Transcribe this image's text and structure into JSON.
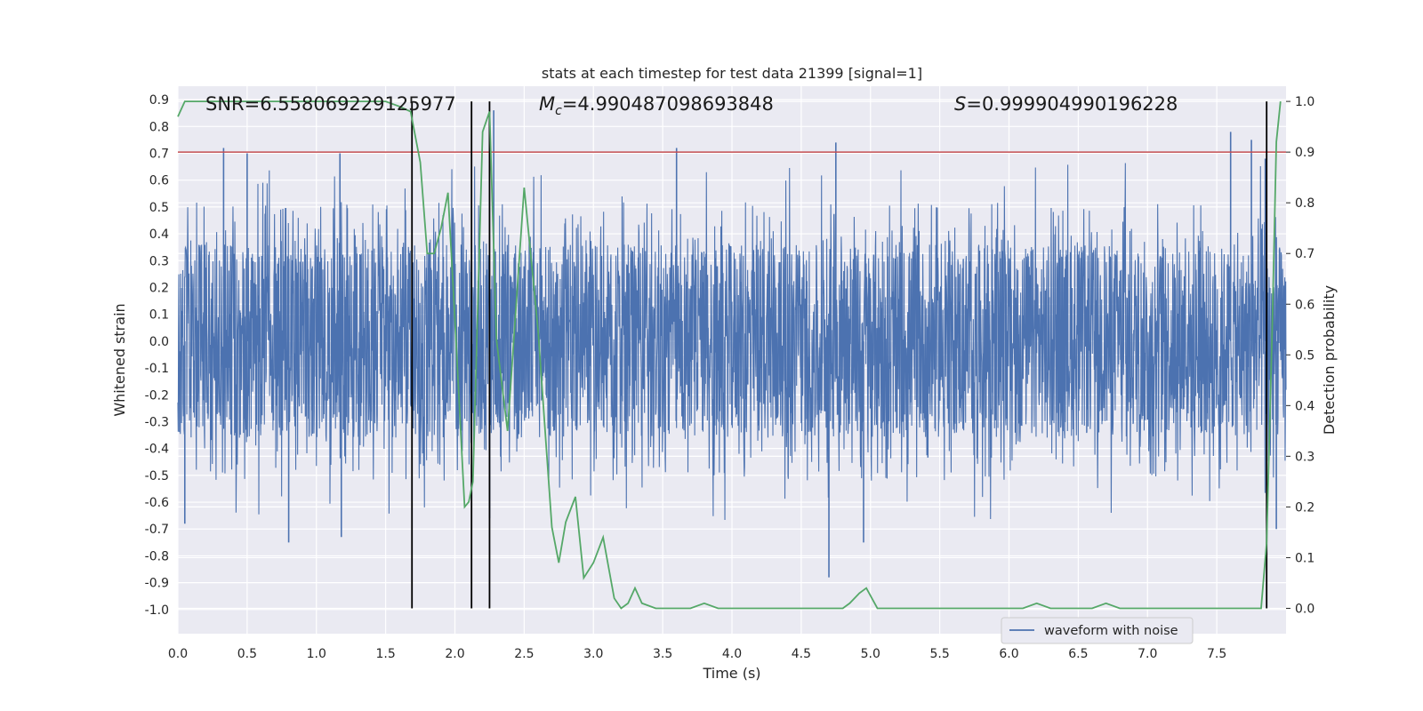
{
  "chart_data": {
    "type": "line",
    "title": "stats at each timestep for test data 21399 [signal=1]",
    "xlabel": "Time (s)",
    "ylabel_left": "Whitened strain",
    "ylabel_right": "Detection probability",
    "xlim": [
      0.0,
      8.0
    ],
    "ylim_left": [
      -1.09,
      0.95
    ],
    "ylim_right": [
      -0.05,
      1.03
    ],
    "x_ticks": [
      "0.0",
      "0.5",
      "1.0",
      "1.5",
      "2.0",
      "2.5",
      "3.0",
      "3.5",
      "4.0",
      "4.5",
      "5.0",
      "5.5",
      "6.0",
      "6.5",
      "7.0",
      "7.5"
    ],
    "y_left_ticks": [
      "-1.0",
      "-0.9",
      "-0.8",
      "-0.7",
      "-0.6",
      "-0.5",
      "-0.4",
      "-0.3",
      "-0.2",
      "-0.1",
      "0.0",
      "0.1",
      "0.2",
      "0.3",
      "0.4",
      "0.5",
      "0.6",
      "0.7",
      "0.8",
      "0.9"
    ],
    "y_right_ticks": [
      "0.0",
      "0.1",
      "0.2",
      "0.3",
      "0.4",
      "0.5",
      "0.6",
      "0.7",
      "0.8",
      "0.9",
      "1.0"
    ],
    "grid": true,
    "annotations": {
      "snr": "SNR=6.558069229125977",
      "mc_symbol": "M",
      "mc_sub": "c",
      "mc_value": "=4.990487098693848",
      "s_symbol": "S",
      "s_value": "=0.999904990196228"
    },
    "threshold_right": 0.9,
    "vertical_lines_x": [
      1.69,
      2.12,
      2.25,
      7.86
    ],
    "legend": {
      "position": "lower-right",
      "entries": [
        "waveform with noise"
      ]
    },
    "series": [
      {
        "name": "waveform with noise",
        "axis": "left",
        "color": "#4c72b0",
        "kind": "dense noise",
        "x_range": [
          0.0,
          8.0
        ],
        "typical_envelope": [
          -0.45,
          0.45
        ],
        "extreme_range": [
          -0.88,
          0.86
        ],
        "spikes": [
          [
            0.05,
            -0.68
          ],
          [
            0.33,
            0.72
          ],
          [
            0.5,
            0.7
          ],
          [
            0.8,
            -0.75
          ],
          [
            1.17,
            0.7
          ],
          [
            1.18,
            -0.73
          ],
          [
            2.25,
            -0.66
          ],
          [
            2.28,
            0.86
          ],
          [
            3.6,
            0.72
          ],
          [
            4.75,
            0.74
          ],
          [
            4.7,
            -0.88
          ],
          [
            4.95,
            -0.75
          ],
          [
            7.6,
            0.78
          ],
          [
            7.75,
            0.75
          ],
          [
            7.85,
            0.68
          ],
          [
            7.93,
            -0.7
          ]
        ]
      },
      {
        "name": "Detection probability",
        "axis": "right",
        "color": "#55a868",
        "x": [
          0.0,
          0.05,
          0.1,
          0.5,
          1.0,
          1.5,
          1.6,
          1.68,
          1.75,
          1.8,
          1.85,
          1.9,
          1.95,
          2.0,
          2.07,
          2.1,
          2.13,
          2.2,
          2.25,
          2.3,
          2.38,
          2.5,
          2.6,
          2.7,
          2.75,
          2.8,
          2.87,
          2.93,
          3.0,
          3.07,
          3.15,
          3.2,
          3.25,
          3.3,
          3.35,
          3.45,
          3.5,
          3.6,
          3.7,
          3.8,
          3.9,
          4.0,
          4.5,
          4.7,
          4.8,
          4.85,
          4.92,
          4.97,
          5.05,
          5.2,
          5.4,
          5.6,
          5.8,
          6.0,
          6.1,
          6.2,
          6.3,
          6.5,
          6.6,
          6.7,
          6.8,
          7.0,
          7.2,
          7.4,
          7.6,
          7.75,
          7.82,
          7.86,
          7.9,
          7.93,
          7.96
        ],
        "values": [
          0.97,
          1.0,
          1.0,
          1.0,
          1.0,
          1.0,
          0.99,
          0.98,
          0.88,
          0.7,
          0.7,
          0.75,
          0.82,
          0.57,
          0.2,
          0.21,
          0.25,
          0.94,
          0.98,
          0.53,
          0.35,
          0.83,
          0.55,
          0.16,
          0.09,
          0.17,
          0.22,
          0.06,
          0.09,
          0.14,
          0.02,
          0.0,
          0.01,
          0.04,
          0.01,
          0.0,
          0.0,
          0.0,
          0.0,
          0.01,
          0.0,
          0.0,
          0.0,
          0.0,
          0.0,
          0.01,
          0.03,
          0.04,
          0.0,
          0.0,
          0.0,
          0.0,
          0.0,
          0.0,
          0.0,
          0.01,
          0.0,
          0.0,
          0.0,
          0.01,
          0.0,
          0.0,
          0.0,
          0.0,
          0.0,
          0.0,
          0.0,
          0.13,
          0.55,
          0.92,
          1.0
        ]
      }
    ]
  }
}
